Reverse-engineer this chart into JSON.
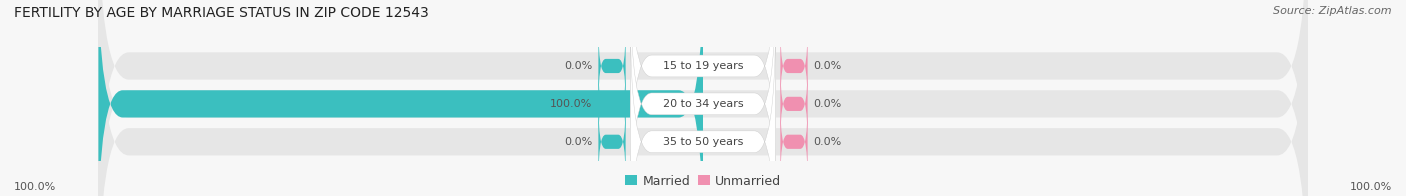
{
  "title": "FERTILITY BY AGE BY MARRIAGE STATUS IN ZIP CODE 12543",
  "source": "Source: ZipAtlas.com",
  "categories": [
    "15 to 19 years",
    "20 to 34 years",
    "35 to 50 years"
  ],
  "married_values": [
    0.0,
    100.0,
    0.0
  ],
  "unmarried_values": [
    0.0,
    0.0,
    0.0
  ],
  "married_color": "#3bbfbf",
  "unmarried_color": "#f090b0",
  "bar_bg_color": "#e6e6e6",
  "label_left_married": [
    "0.0%",
    "100.0%",
    "0.0%"
  ],
  "label_right_unmarried": [
    "0.0%",
    "0.0%",
    "0.0%"
  ],
  "axis_left_label": "100.0%",
  "axis_right_label": "100.0%",
  "title_fontsize": 10,
  "source_fontsize": 8,
  "label_fontsize": 8,
  "axis_label_fontsize": 8,
  "legend_fontsize": 9,
  "bg_color": "#f7f7f7",
  "center_label_color": "#444444",
  "value_label_color": "#555555"
}
